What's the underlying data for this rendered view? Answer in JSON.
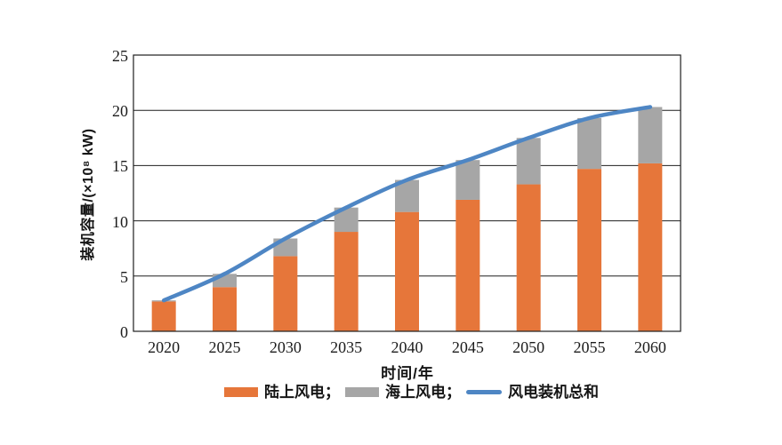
{
  "page": {
    "background": "#ffffff"
  },
  "chart_data": {
    "type": "bar",
    "subtype": "stacked-bars-with-total-line",
    "categories": [
      "2020",
      "2025",
      "2030",
      "2035",
      "2040",
      "2045",
      "2050",
      "2055",
      "2060"
    ],
    "series": [
      {
        "name": "陆上风电",
        "kind": "bar",
        "color": "#E6763A",
        "values": [
          2.7,
          4.0,
          6.8,
          9.0,
          10.8,
          11.9,
          13.3,
          14.7,
          15.2
        ]
      },
      {
        "name": "海上风电",
        "kind": "bar",
        "color": "#A6A6A6",
        "values": [
          0.1,
          1.2,
          1.6,
          2.2,
          2.9,
          3.6,
          4.2,
          4.6,
          5.1
        ]
      },
      {
        "name": "风电装机总和",
        "kind": "line",
        "color": "#4E86C4",
        "values": [
          2.8,
          5.2,
          8.4,
          11.2,
          13.7,
          15.5,
          17.5,
          19.3,
          20.3
        ]
      }
    ],
    "title": "",
    "xlabel": "时间/年",
    "ylabel": "装机容量/(×10⁸ kW)",
    "ylim": [
      0,
      25
    ],
    "yticks": [
      0,
      5,
      10,
      15,
      20,
      25
    ],
    "grid": "horizontal",
    "grid_color": "#1f1f1f",
    "legend_position": "bottom"
  },
  "legend": {
    "items": [
      {
        "label": "陆上风电；",
        "swatch": "bar",
        "color": "#E6763A"
      },
      {
        "label": "海上风电；",
        "swatch": "bar",
        "color": "#A6A6A6"
      },
      {
        "label": "风电装机总和",
        "swatch": "line",
        "color": "#4E86C4"
      }
    ]
  }
}
